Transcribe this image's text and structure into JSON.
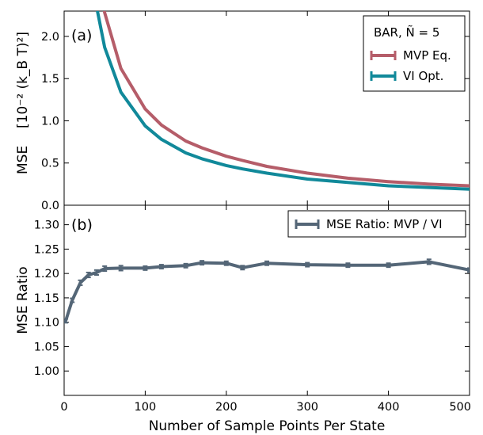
{
  "chart_data": [
    {
      "type": "line",
      "panel_label": "(a)",
      "ylabel": "MSE",
      "ylabel_units": "[10⁻² (k_B T)²]",
      "xlim": [
        0,
        500
      ],
      "ylim": [
        0,
        2.3
      ],
      "yticks": [
        "0.0",
        "0.5",
        "1.0",
        "1.5",
        "2.0"
      ],
      "ytick_values": [
        0.0,
        0.5,
        1.0,
        1.5,
        2.0
      ],
      "legend": {
        "title": "BAR, Ñ = 5",
        "placement": "top-right"
      },
      "series": [
        {
          "name": "MVP Eq.",
          "color": "#b55d69",
          "x": [
            40,
            50,
            70,
            100,
            120,
            150,
            170,
            200,
            220,
            250,
            300,
            350,
            400,
            450,
            500
          ],
          "y": [
            2.85,
            2.28,
            1.62,
            1.14,
            0.95,
            0.76,
            0.68,
            0.58,
            0.53,
            0.46,
            0.38,
            0.32,
            0.28,
            0.25,
            0.23
          ]
        },
        {
          "name": "VI Opt.",
          "color": "#11899a",
          "x": [
            40,
            50,
            70,
            100,
            120,
            150,
            170,
            200,
            220,
            250,
            300,
            350,
            400,
            450,
            500
          ],
          "y": [
            2.35,
            1.87,
            1.34,
            0.94,
            0.78,
            0.62,
            0.55,
            0.47,
            0.43,
            0.38,
            0.31,
            0.27,
            0.23,
            0.21,
            0.19
          ]
        }
      ]
    },
    {
      "type": "line",
      "panel_label": "(b)",
      "xlabel": "Number of Sample Points Per State",
      "ylabel": "MSE Ratio",
      "xlim": [
        0,
        500
      ],
      "ylim": [
        0.95,
        1.34
      ],
      "xticks": [
        "0",
        "100",
        "200",
        "300",
        "400",
        "500"
      ],
      "xtick_values": [
        0,
        100,
        200,
        300,
        400,
        500
      ],
      "yticks": [
        "1.00",
        "1.05",
        "1.10",
        "1.15",
        "1.20",
        "1.25",
        "1.30"
      ],
      "ytick_values": [
        1.0,
        1.05,
        1.1,
        1.15,
        1.2,
        1.25,
        1.3
      ],
      "legend": {
        "placement": "top-right"
      },
      "series": [
        {
          "name": "MSE Ratio: MVP / VI",
          "color": "#546677",
          "x": [
            2,
            10,
            20,
            30,
            40,
            50,
            70,
            100,
            120,
            150,
            170,
            200,
            220,
            250,
            300,
            350,
            400,
            450,
            500
          ],
          "y": [
            1.103,
            1.145,
            1.181,
            1.197,
            1.202,
            1.21,
            1.211,
            1.211,
            1.214,
            1.216,
            1.222,
            1.221,
            1.212,
            1.221,
            1.218,
            1.217,
            1.217,
            1.224,
            1.207
          ],
          "err": [
            0.004,
            0.004,
            0.005,
            0.005,
            0.005,
            0.005,
            0.005,
            0.004,
            0.004,
            0.004,
            0.004,
            0.004,
            0.004,
            0.004,
            0.004,
            0.004,
            0.004,
            0.005,
            0.004
          ]
        }
      ]
    }
  ]
}
